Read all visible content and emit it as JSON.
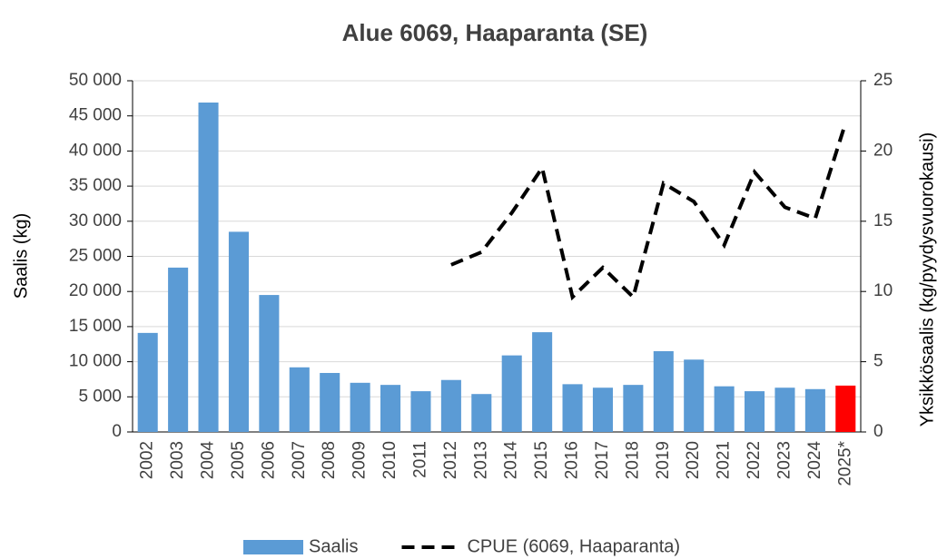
{
  "chart_data": {
    "type": "bar_line",
    "title": "Alue 6069, Haaparanta (SE)",
    "ylabel": "Saalis (kg)",
    "y2label": "Yksikkösaalis (kg/pyydysvuorokausi)",
    "categories": [
      "2002",
      "2003",
      "2004",
      "2005",
      "2006",
      "2007",
      "2008",
      "2009",
      "2010",
      "2011",
      "2012",
      "2013",
      "2014",
      "2015",
      "2016",
      "2017",
      "2018",
      "2019",
      "2020",
      "2021",
      "2022",
      "2023",
      "2024",
      "2025*"
    ],
    "series": [
      {
        "name": "Saalis",
        "type": "bar",
        "color": "#5b9bd5",
        "colors": [
          "#5b9bd5",
          "#5b9bd5",
          "#5b9bd5",
          "#5b9bd5",
          "#5b9bd5",
          "#5b9bd5",
          "#5b9bd5",
          "#5b9bd5",
          "#5b9bd5",
          "#5b9bd5",
          "#5b9bd5",
          "#5b9bd5",
          "#5b9bd5",
          "#5b9bd5",
          "#5b9bd5",
          "#5b9bd5",
          "#5b9bd5",
          "#5b9bd5",
          "#5b9bd5",
          "#5b9bd5",
          "#5b9bd5",
          "#5b9bd5",
          "#5b9bd5",
          "#ff0000"
        ],
        "values": [
          14100,
          23400,
          46900,
          28500,
          19500,
          9200,
          8400,
          7000,
          6700,
          5800,
          7400,
          5400,
          10900,
          14200,
          6800,
          6300,
          6700,
          11500,
          10300,
          6500,
          5800,
          6300,
          6100,
          6600
        ]
      },
      {
        "name": "CPUE (6069, Haaparanta)",
        "type": "line",
        "axis": "y2",
        "color": "#000000",
        "dash": true,
        "values": [
          null,
          null,
          null,
          null,
          null,
          null,
          null,
          null,
          null,
          null,
          11.9,
          12.8,
          15.6,
          18.8,
          9.6,
          11.7,
          9.6,
          17.7,
          16.4,
          13.3,
          18.5,
          16.0,
          15.2,
          22.0
        ]
      }
    ],
    "ylim": [
      0,
      50000
    ],
    "yticks": [
      0,
      {
        "value": 5000,
        "label": "5 000"
      },
      {
        "value": 10000,
        "label": "10 000"
      },
      {
        "value": 15000,
        "label": "15 000"
      },
      {
        "value": 20000,
        "label": "20 000"
      },
      {
        "value": 25000,
        "label": "25 000"
      },
      {
        "value": 30000,
        "label": "30 000"
      },
      {
        "value": 35000,
        "label": "35 000"
      },
      {
        "value": 40000,
        "label": "40 000"
      },
      {
        "value": 45000,
        "label": "45 000"
      },
      {
        "value": 50000,
        "label": "50 000"
      }
    ],
    "y2lim": [
      0,
      25
    ],
    "y2ticks": [
      0,
      5,
      10,
      15,
      20,
      25
    ],
    "grid": true,
    "legend": "bottom"
  }
}
